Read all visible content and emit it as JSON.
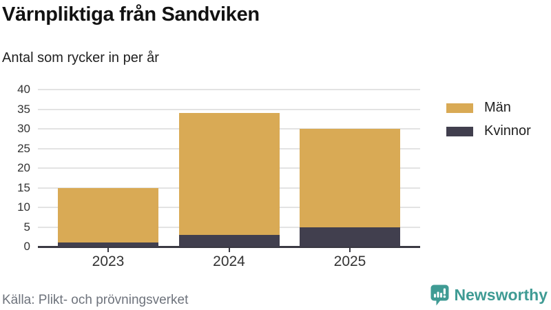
{
  "header": {
    "title": "Värnpliktiga från Sandviken",
    "subtitle": "Antal som rycker in per år"
  },
  "footer": {
    "source": "Källa: Plikt- och prövningsverket",
    "brand_name": "Newsworthy",
    "brand_icon": "bar-chart-speech-bubble-icon",
    "brand_color": "#3f9b94"
  },
  "colors": {
    "men": "#d9aa55",
    "women": "#413f4e",
    "axis": "#3a3942",
    "grid": "#e3e3e3",
    "tick_text": "#333333",
    "source_text": "#6e737c"
  },
  "chart_data": {
    "type": "bar",
    "stacked": true,
    "title": "Värnpliktiga från Sandviken",
    "subtitle": "Antal som rycker in per år",
    "categories": [
      "2023",
      "2024",
      "2025"
    ],
    "series": [
      {
        "name": "Män",
        "color": "#d9aa55",
        "values": [
          14,
          31,
          25
        ]
      },
      {
        "name": "Kvinnor",
        "color": "#413f4e",
        "values": [
          1,
          3,
          5
        ]
      }
    ],
    "stack_order_bottom_to_top": [
      "Kvinnor",
      "Män"
    ],
    "totals": [
      15,
      34,
      30
    ],
    "xlabel": "",
    "ylabel": "",
    "ylim": [
      0,
      40
    ],
    "yticks": [
      0,
      5,
      10,
      15,
      20,
      25,
      30,
      35,
      40
    ],
    "grid": true,
    "legend_position": "right"
  }
}
